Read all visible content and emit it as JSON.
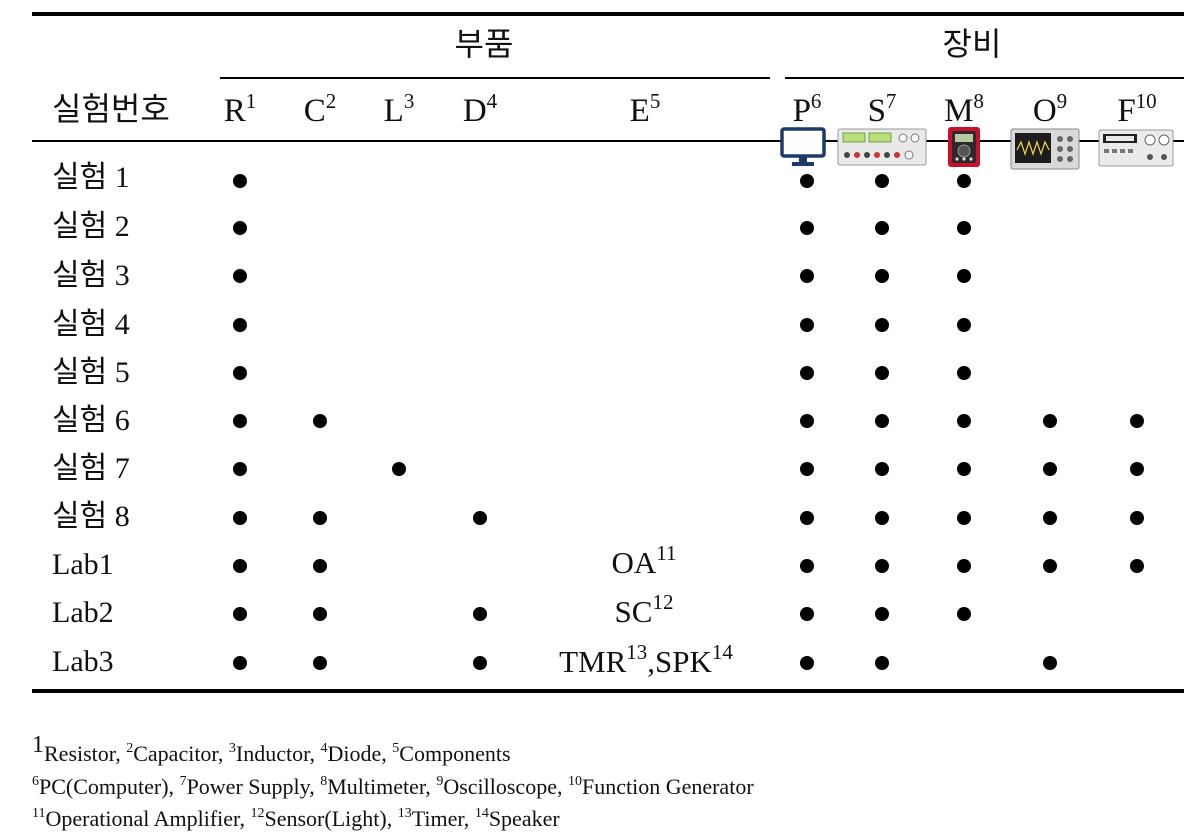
{
  "header": {
    "row_label": "실험번호",
    "group_components": "부품",
    "group_equipment": "장비"
  },
  "columns": [
    {
      "key": "R",
      "label": "R",
      "sup": "1",
      "group": "부품"
    },
    {
      "key": "C",
      "label": "C",
      "sup": "2",
      "group": "부품"
    },
    {
      "key": "L",
      "label": "L",
      "sup": "3",
      "group": "부품"
    },
    {
      "key": "D",
      "label": "D",
      "sup": "4",
      "group": "부품"
    },
    {
      "key": "E",
      "label": "E",
      "sup": "5",
      "group": "부품"
    },
    {
      "key": "P",
      "label": "P",
      "sup": "6",
      "group": "장비",
      "icon": "computer-monitor-icon"
    },
    {
      "key": "S",
      "label": "S",
      "sup": "7",
      "group": "장비",
      "icon": "power-supply-icon"
    },
    {
      "key": "M",
      "label": "M",
      "sup": "8",
      "group": "장비",
      "icon": "multimeter-icon"
    },
    {
      "key": "O",
      "label": "O",
      "sup": "9",
      "group": "장비",
      "icon": "oscilloscope-icon"
    },
    {
      "key": "F",
      "label": "F",
      "sup": "10",
      "group": "장비",
      "icon": "function-generator-icon"
    }
  ],
  "rows": [
    {
      "label": "실험 1",
      "marks": [
        "R",
        "P",
        "S",
        "M"
      ],
      "extra": []
    },
    {
      "label": "실험 2",
      "marks": [
        "R",
        "P",
        "S",
        "M"
      ],
      "extra": []
    },
    {
      "label": "실험 3",
      "marks": [
        "R",
        "P",
        "S",
        "M"
      ],
      "extra": []
    },
    {
      "label": "실험 4",
      "marks": [
        "R",
        "P",
        "S",
        "M"
      ],
      "extra": []
    },
    {
      "label": "실험 5",
      "marks": [
        "R",
        "P",
        "S",
        "M"
      ],
      "extra": []
    },
    {
      "label": "실험 6",
      "marks": [
        "R",
        "C",
        "P",
        "S",
        "M",
        "O",
        "F"
      ],
      "extra": []
    },
    {
      "label": "실험 7",
      "marks": [
        "R",
        "L",
        "P",
        "S",
        "M",
        "O",
        "F"
      ],
      "extra": []
    },
    {
      "label": "실험 8",
      "marks": [
        "R",
        "C",
        "D",
        "P",
        "S",
        "M",
        "O",
        "F"
      ],
      "extra": []
    },
    {
      "label": "Lab1",
      "marks": [
        "R",
        "C",
        "P",
        "S",
        "M",
        "O",
        "F"
      ],
      "extra": [
        {
          "text": "OA",
          "sup": "11"
        }
      ]
    },
    {
      "label": "Lab2",
      "marks": [
        "R",
        "C",
        "D",
        "P",
        "S",
        "M"
      ],
      "extra": [
        {
          "text": "SC",
          "sup": "12"
        }
      ]
    },
    {
      "label": "Lab3",
      "marks": [
        "R",
        "C",
        "D",
        "P",
        "S",
        "O"
      ],
      "extra": [
        {
          "text": "TMR",
          "sup": "13"
        },
        {
          "text": ",SPK",
          "sup": "14"
        }
      ]
    }
  ],
  "footnotes": [
    [
      {
        "sup": "1",
        "text": "Resistor, "
      },
      {
        "sup": "2",
        "text": "Capacitor, "
      },
      {
        "sup": "3",
        "text": "Inductor, "
      },
      {
        "sup": "4",
        "text": "Diode, "
      },
      {
        "sup": "5",
        "text": "Components"
      }
    ],
    [
      {
        "sup": "6",
        "text": "PC(Computer), "
      },
      {
        "sup": "7",
        "text": "Power Supply, "
      },
      {
        "sup": "8",
        "text": "Multimeter, "
      },
      {
        "sup": "9",
        "text": "Oscilloscope, "
      },
      {
        "sup": "10",
        "text": "Function Generator"
      }
    ],
    [
      {
        "sup": "11",
        "text": "Operational Amplifier, "
      },
      {
        "sup": "12",
        "text": "Sensor(Light), "
      },
      {
        "sup": "13",
        "text": "Timer, "
      },
      {
        "sup": "14",
        "text": "Speaker"
      }
    ]
  ],
  "colors": {
    "ink": "#000000",
    "multimeter_accent": "#c8102e",
    "monitor_blue": "#1f3a68"
  }
}
